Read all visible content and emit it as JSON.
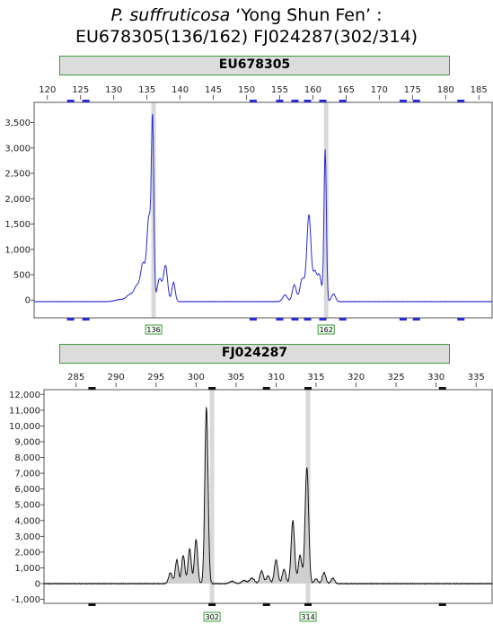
{
  "header": {
    "title_italic": "P. suffruticosa",
    "title_rest": " ‘Yong Shun Fen’ :",
    "subtitle": "EU678305(136/162) FJ024287(302/314)"
  },
  "chart_data": [
    {
      "type": "line",
      "locus": "EU678305",
      "color": "#2a2ad6",
      "fill": false,
      "xlim": [
        118,
        187
      ],
      "ylim": [
        -350,
        3900
      ],
      "x_ticks": [
        120,
        125,
        130,
        135,
        140,
        145,
        150,
        155,
        160,
        165,
        170,
        175,
        180,
        185
      ],
      "y_ticks": [
        0,
        500,
        1000,
        1500,
        2000,
        2500,
        3000,
        3500
      ],
      "y_tick_labels": [
        "0",
        "500",
        "1,000",
        "1,500",
        "2,000",
        "2,500",
        "3,000",
        "3,500"
      ],
      "peak_labels": [
        {
          "x": 136,
          "label": "136"
        },
        {
          "x": 162,
          "label": "162"
        }
      ],
      "bin_markers": [
        123.5,
        125.8,
        151,
        155,
        157.3,
        159.2,
        161.5,
        164.5,
        173.6,
        175.6,
        182.3
      ],
      "baseline": -30,
      "peaks": [
        {
          "x": 131,
          "h": 40,
          "w": 0.8
        },
        {
          "x": 132.4,
          "h": 120,
          "w": 0.5
        },
        {
          "x": 133.5,
          "h": 300,
          "w": 0.45
        },
        {
          "x": 134.4,
          "h": 700,
          "w": 0.35
        },
        {
          "x": 135.3,
          "h": 1650,
          "w": 0.32
        },
        {
          "x": 135.85,
          "h": 3350,
          "w": 0.18
        },
        {
          "x": 136.9,
          "h": 450,
          "w": 0.35
        },
        {
          "x": 137.8,
          "h": 700,
          "w": 0.3
        },
        {
          "x": 139.0,
          "h": 380,
          "w": 0.25
        },
        {
          "x": 155.8,
          "h": 130,
          "w": 0.35
        },
        {
          "x": 157.2,
          "h": 330,
          "w": 0.3
        },
        {
          "x": 158.4,
          "h": 450,
          "w": 0.35
        },
        {
          "x": 159.4,
          "h": 1700,
          "w": 0.32
        },
        {
          "x": 160.3,
          "h": 550,
          "w": 0.3
        },
        {
          "x": 161.0,
          "h": 500,
          "w": 0.3
        },
        {
          "x": 161.85,
          "h": 3000,
          "w": 0.18
        },
        {
          "x": 163.1,
          "h": 150,
          "w": 0.3
        }
      ]
    },
    {
      "type": "area",
      "locus": "FJ024287",
      "color": "#111111",
      "fill": true,
      "xlim": [
        281,
        337
      ],
      "ylim": [
        -1250,
        12300
      ],
      "x_ticks": [
        285,
        290,
        295,
        300,
        305,
        310,
        315,
        320,
        325,
        330,
        335
      ],
      "y_ticks": [
        -1000,
        0,
        1000,
        2000,
        3000,
        4000,
        5000,
        6000,
        7000,
        8000,
        9000,
        10000,
        11000,
        12000
      ],
      "y_tick_labels": [
        "-1,000",
        "0",
        "1,000",
        "2,000",
        "3,000",
        "4,000",
        "5,000",
        "6,000",
        "7,000",
        "8,000",
        "9,000",
        "10,000",
        "11,000",
        "12,000"
      ],
      "peak_labels": [
        {
          "x": 302,
          "label": "302"
        },
        {
          "x": 314,
          "label": "314"
        }
      ],
      "bin_markers": [
        287,
        302,
        308.8,
        314,
        330.8
      ],
      "baseline": 0,
      "peaks": [
        {
          "x": 296.8,
          "h": 700,
          "w": 0.22
        },
        {
          "x": 297.6,
          "h": 1500,
          "w": 0.2
        },
        {
          "x": 298.4,
          "h": 1800,
          "w": 0.2
        },
        {
          "x": 299.2,
          "h": 2200,
          "w": 0.2
        },
        {
          "x": 300.0,
          "h": 2800,
          "w": 0.2
        },
        {
          "x": 301.3,
          "h": 11200,
          "w": 0.2
        },
        {
          "x": 304.5,
          "h": 150,
          "w": 0.3
        },
        {
          "x": 306.0,
          "h": 200,
          "w": 0.3
        },
        {
          "x": 307.0,
          "h": 350,
          "w": 0.3
        },
        {
          "x": 308.2,
          "h": 800,
          "w": 0.22
        },
        {
          "x": 309.0,
          "h": 500,
          "w": 0.22
        },
        {
          "x": 310.0,
          "h": 1500,
          "w": 0.22
        },
        {
          "x": 311.0,
          "h": 900,
          "w": 0.22
        },
        {
          "x": 312.1,
          "h": 4000,
          "w": 0.22
        },
        {
          "x": 313.0,
          "h": 1800,
          "w": 0.22
        },
        {
          "x": 313.85,
          "h": 7400,
          "w": 0.22
        },
        {
          "x": 315.0,
          "h": 300,
          "w": 0.22
        },
        {
          "x": 316.0,
          "h": 700,
          "w": 0.22
        },
        {
          "x": 317.1,
          "h": 350,
          "w": 0.22
        }
      ]
    }
  ]
}
